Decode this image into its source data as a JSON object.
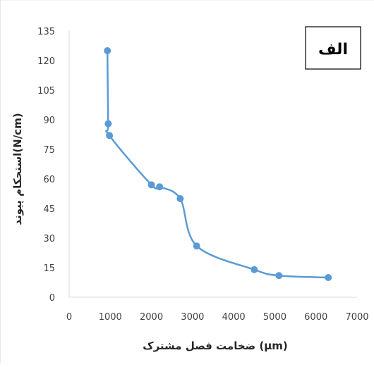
{
  "chart_data": {
    "type": "line",
    "title": "",
    "panel_label": "الف",
    "xlabel": "ضخامت فصل مشترک (µm)",
    "ylabel": "استحکام پیوند(N/cm)",
    "xlim": [
      0,
      7000
    ],
    "ylim": [
      0,
      135
    ],
    "x_ticks": [
      "0",
      "1000",
      "2000",
      "3000",
      "4000",
      "5000",
      "6000",
      "7000"
    ],
    "y_ticks": [
      "0",
      "15",
      "30",
      "45",
      "60",
      "75",
      "90",
      "105",
      "120",
      "135"
    ],
    "grid": false,
    "smooth": true,
    "series": [
      {
        "x": [
          930,
          950,
          980,
          2000,
          2200,
          2700,
          3100,
          4500,
          5100,
          6300
        ],
        "y": [
          125,
          88,
          82,
          57,
          56,
          50,
          26,
          14,
          11,
          10
        ]
      }
    ],
    "colors": {
      "series": "#5B9BD5",
      "axis": "#D9D9D9",
      "border": "#000000"
    }
  }
}
